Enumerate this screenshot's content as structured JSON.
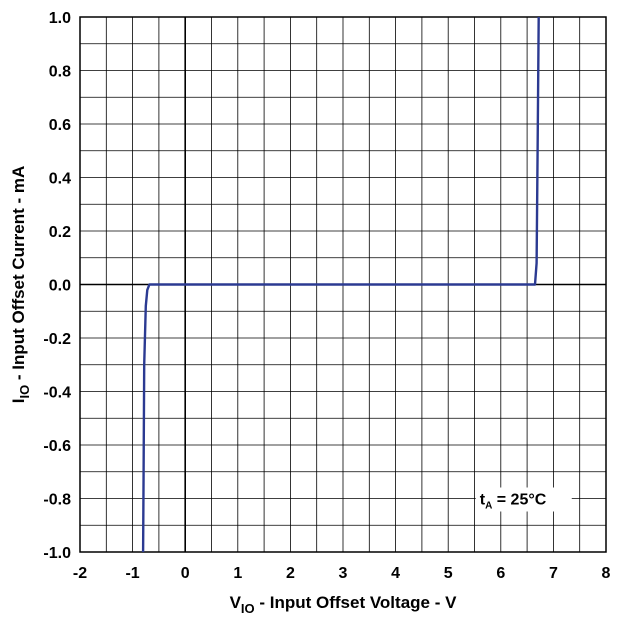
{
  "chart_data": {
    "type": "line",
    "x_axis": {
      "label_main": "V",
      "label_sub": "IO",
      "label_rest": " - Input Offset Voltage - V",
      "min": -2,
      "max": 8,
      "ticks": [
        "-2",
        "-1",
        "0",
        "1",
        "2",
        "3",
        "4",
        "5",
        "6",
        "7",
        "8"
      ],
      "minor_divisions": 2
    },
    "y_axis": {
      "label_main": "I",
      "label_sub": "IO",
      "label_rest": " - Input Offset Current - mA",
      "min": -1.0,
      "max": 1.0,
      "ticks": [
        "-1.0",
        "-0.8",
        "-0.6",
        "-0.4",
        "-0.2",
        "0.0",
        "0.2",
        "0.4",
        "0.6",
        "0.8",
        "1.0"
      ],
      "minor_divisions": 2
    },
    "grid": true,
    "annotation": {
      "main": "t",
      "sub": "A",
      "rest": " = 25°C",
      "placement": "bottom-right"
    },
    "series": [
      {
        "color": "#2b3a92",
        "x": [
          -0.8,
          -0.79,
          -0.78,
          -0.75,
          -0.72,
          -0.68,
          -0.6,
          0,
          1,
          2,
          3,
          4,
          5,
          6,
          6.65,
          6.68,
          6.7,
          6.72
        ],
        "y": [
          -1.0,
          -0.7,
          -0.3,
          -0.08,
          -0.02,
          0.0,
          0.0,
          0.0,
          0.0,
          0.0,
          0.0,
          0.0,
          0.0,
          0.0,
          0.0,
          0.08,
          0.5,
          1.0
        ]
      }
    ]
  }
}
